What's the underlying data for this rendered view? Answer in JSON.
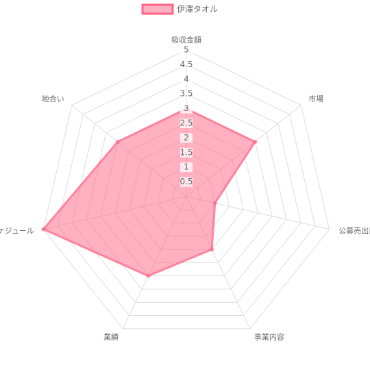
{
  "chart_data": {
    "type": "radar",
    "categories": [
      "吸収金額",
      "市場",
      "公募売出比",
      "事業内容",
      "業績",
      "スケジュール",
      "地合い"
    ],
    "series": [
      {
        "name": "伊澤タオル",
        "color": "#ff6384",
        "values": [
          3,
          3,
          1,
          2,
          3,
          5,
          3
        ]
      }
    ],
    "ylim": [
      0,
      5
    ],
    "yticks": [
      0,
      0.5,
      1,
      1.5,
      2,
      2.5,
      3,
      3.5,
      4,
      4.5,
      5
    ],
    "grid": true,
    "legend": "top"
  }
}
